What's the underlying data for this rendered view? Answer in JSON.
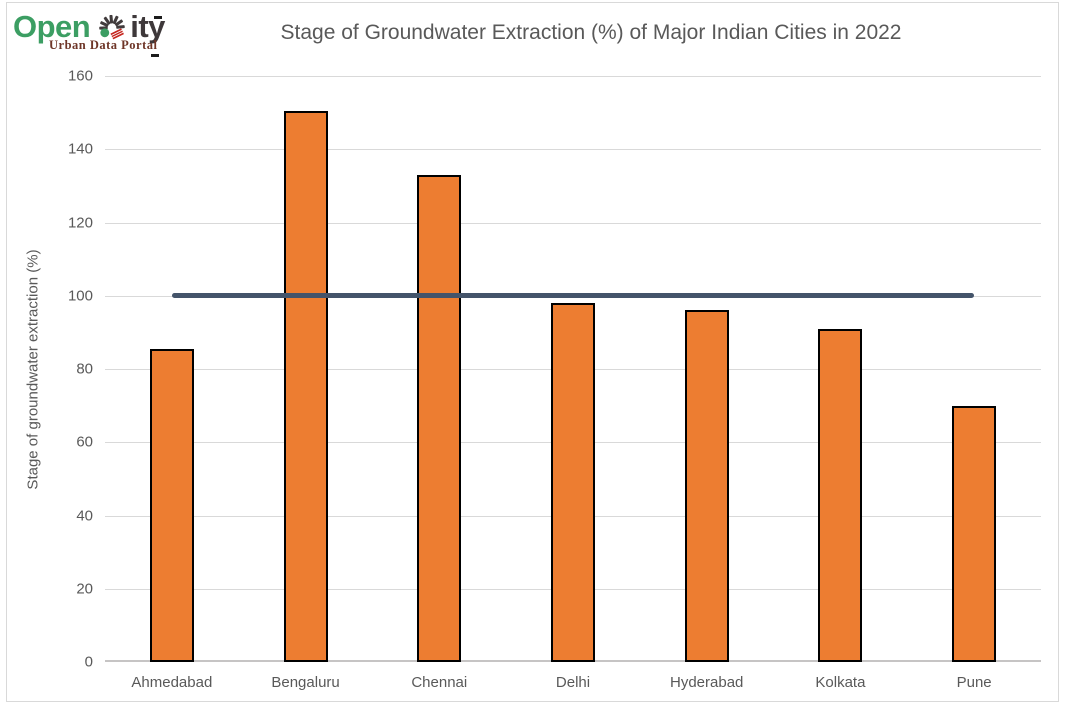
{
  "logo": {
    "open": "Open",
    "city_rest": "ity",
    "subtitle": "Urban Data Portal",
    "open_color": "#3C9E63",
    "dark_color": "#3E383A",
    "subtitle_color": "#6E3527",
    "icon": "pinwheel-city-icon",
    "icon_green": "#3C9E63",
    "icon_red": "#C5261F",
    "icon_dark": "#413B3C"
  },
  "chart_data": {
    "type": "bar",
    "title": "Stage of Groundwater Extraction (%) of Major Indian Cities in 2022",
    "xlabel": "",
    "ylabel": "Stage of groundwater extraction (%)",
    "categories": [
      "Ahmedabad",
      "Bengaluru",
      "Chennai",
      "Delhi",
      "Hyderabad",
      "Kolkata",
      "Pune"
    ],
    "values": [
      85.5,
      150.5,
      133,
      98,
      96,
      91,
      70
    ],
    "reference_line": {
      "value": 100,
      "color": "#44546A"
    },
    "ylim": [
      0,
      160
    ],
    "yticks": [
      0,
      20,
      40,
      60,
      80,
      100,
      120,
      140,
      160
    ],
    "grid": true,
    "legend": "none",
    "bar_color": "#ED7D31",
    "bar_border_color": "#000000",
    "gridline_color": "#D9D9D9",
    "axis_line_color": "#C6C4C4",
    "text_color": "#595959"
  }
}
